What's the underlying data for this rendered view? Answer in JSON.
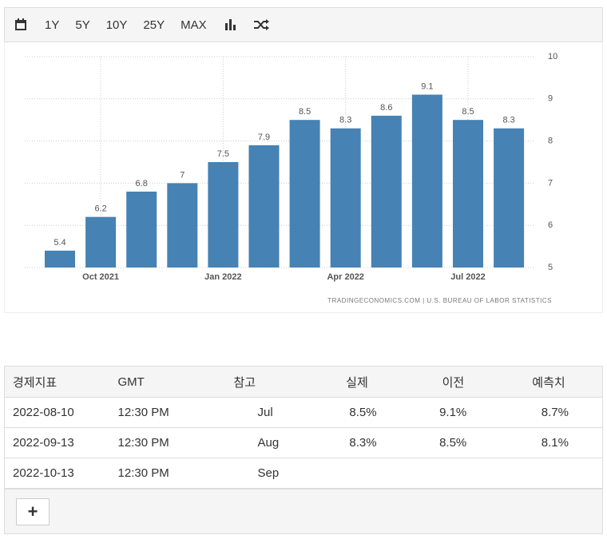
{
  "toolbar": {
    "buttons": [
      "1Y",
      "5Y",
      "10Y",
      "25Y",
      "MAX"
    ]
  },
  "chart_data": {
    "type": "bar",
    "categories": [
      null,
      "Oct 2021",
      null,
      null,
      "Jan 2022",
      null,
      null,
      "Apr 2022",
      null,
      null,
      "Jul 2022",
      null
    ],
    "values": [
      5.4,
      6.2,
      6.8,
      7,
      7.5,
      7.9,
      8.5,
      8.3,
      8.6,
      9.1,
      8.5,
      8.3
    ],
    "color": "#4682b4",
    "ylim": [
      5,
      10
    ],
    "yticks": [
      5,
      6,
      7,
      8,
      9,
      10
    ],
    "grid": true,
    "source": "TRADINGECONOMICS.COM | U.S. BUREAU OF LABOR STATISTICS"
  },
  "table": {
    "header": [
      "경제지표",
      "GMT",
      "참고",
      "실제",
      "이전",
      "예측치"
    ],
    "rows": [
      [
        "2022-08-10",
        "12:30 PM",
        "Jul",
        "8.5%",
        "9.1%",
        "8.7%"
      ],
      [
        "2022-09-13",
        "12:30 PM",
        "Aug",
        "8.3%",
        "8.5%",
        "8.1%"
      ],
      [
        "2022-10-13",
        "12:30 PM",
        "Sep"
      ]
    ],
    "add_button": "+"
  }
}
